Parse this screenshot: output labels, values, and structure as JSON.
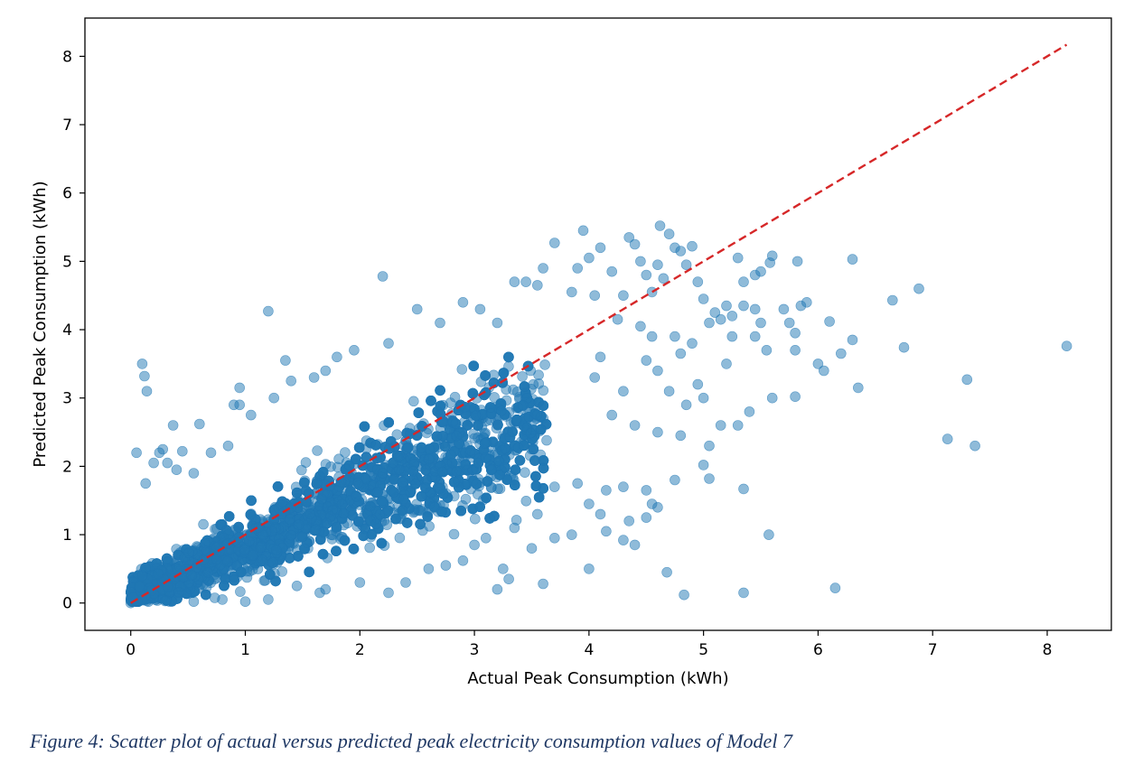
{
  "chart_data": {
    "type": "scatter",
    "title": "",
    "xlabel": "Actual Peak Consumption (kWh)",
    "ylabel": "Predicted Peak Consumption (kWh)",
    "xlim": [
      -0.4,
      8.56
    ],
    "ylim": [
      -0.4,
      8.56
    ],
    "xticks": [
      0,
      1,
      2,
      3,
      4,
      5,
      6,
      7,
      8
    ],
    "yticks": [
      0,
      1,
      2,
      3,
      4,
      5,
      6,
      7,
      8
    ],
    "grid": false,
    "point_color": "#1f77b4",
    "point_alpha": 0.5,
    "reference_line": {
      "x": [
        0,
        8.17
      ],
      "y": [
        0,
        8.17
      ],
      "color": "#d62728",
      "style": "dashed"
    },
    "cluster_note": "dense cloud of several thousand points concentrated along 0-3.5 kWh",
    "points": [
      [
        0.0,
        0.0
      ],
      [
        0.05,
        0.02
      ],
      [
        0.1,
        0.05
      ],
      [
        0.02,
        0.08
      ],
      [
        0.1,
        3.5
      ],
      [
        0.12,
        3.32
      ],
      [
        0.14,
        3.1
      ],
      [
        0.05,
        2.2
      ],
      [
        0.28,
        2.25
      ],
      [
        0.32,
        2.05
      ],
      [
        0.37,
        2.6
      ],
      [
        0.6,
        2.62
      ],
      [
        0.25,
        2.2
      ],
      [
        0.45,
        2.22
      ],
      [
        0.2,
        2.05
      ],
      [
        0.13,
        1.75
      ],
      [
        0.4,
        1.95
      ],
      [
        0.55,
        1.9
      ],
      [
        0.7,
        2.2
      ],
      [
        0.85,
        2.3
      ],
      [
        0.9,
        2.9
      ],
      [
        0.95,
        3.15
      ],
      [
        1.2,
        4.27
      ],
      [
        1.25,
        3.0
      ],
      [
        1.4,
        3.25
      ],
      [
        1.35,
        3.55
      ],
      [
        1.6,
        3.3
      ],
      [
        1.7,
        3.4
      ],
      [
        1.8,
        3.6
      ],
      [
        1.95,
        3.7
      ],
      [
        2.2,
        4.78
      ],
      [
        2.25,
        3.8
      ],
      [
        2.5,
        4.3
      ],
      [
        2.7,
        4.1
      ],
      [
        2.9,
        4.4
      ],
      [
        3.05,
        4.3
      ],
      [
        3.2,
        4.1
      ],
      [
        3.35,
        4.7
      ],
      [
        3.45,
        4.7
      ],
      [
        3.55,
        4.65
      ],
      [
        3.7,
        5.27
      ],
      [
        3.6,
        4.9
      ],
      [
        3.9,
        4.9
      ],
      [
        3.85,
        4.55
      ],
      [
        3.95,
        5.45
      ],
      [
        4.0,
        5.05
      ],
      [
        4.05,
        4.5
      ],
      [
        4.1,
        5.2
      ],
      [
        4.2,
        4.85
      ],
      [
        4.3,
        4.5
      ],
      [
        4.35,
        5.35
      ],
      [
        4.4,
        5.25
      ],
      [
        4.45,
        5.0
      ],
      [
        4.5,
        4.8
      ],
      [
        4.55,
        4.55
      ],
      [
        4.6,
        4.95
      ],
      [
        4.65,
        4.75
      ],
      [
        4.62,
        5.52
      ],
      [
        4.7,
        5.4
      ],
      [
        4.75,
        5.2
      ],
      [
        4.8,
        5.15
      ],
      [
        4.85,
        4.95
      ],
      [
        4.9,
        5.22
      ],
      [
        4.95,
        4.7
      ],
      [
        5.0,
        4.45
      ],
      [
        5.1,
        4.25
      ],
      [
        5.15,
        4.15
      ],
      [
        5.2,
        4.35
      ],
      [
        5.25,
        4.2
      ],
      [
        5.3,
        5.05
      ],
      [
        5.35,
        4.7
      ],
      [
        5.45,
        4.8
      ],
      [
        5.5,
        4.85
      ],
      [
        5.58,
        4.98
      ],
      [
        5.6,
        5.08
      ],
      [
        5.7,
        4.3
      ],
      [
        5.75,
        4.1
      ],
      [
        5.8,
        3.95
      ],
      [
        5.85,
        4.35
      ],
      [
        5.9,
        4.4
      ],
      [
        5.82,
        5.0
      ],
      [
        5.8,
        3.7
      ],
      [
        6.1,
        4.12
      ],
      [
        6.2,
        3.65
      ],
      [
        6.3,
        3.85
      ],
      [
        6.35,
        3.15
      ],
      [
        6.0,
        3.5
      ],
      [
        6.05,
        3.4
      ],
      [
        6.3,
        5.03
      ],
      [
        6.65,
        4.43
      ],
      [
        6.75,
        3.74
      ],
      [
        6.88,
        4.6
      ],
      [
        7.13,
        2.4
      ],
      [
        7.3,
        3.27
      ],
      [
        7.37,
        2.3
      ],
      [
        8.17,
        3.76
      ],
      [
        5.8,
        3.02
      ],
      [
        5.6,
        3.0
      ],
      [
        5.4,
        2.8
      ],
      [
        5.3,
        2.6
      ],
      [
        5.15,
        2.6
      ],
      [
        5.05,
        2.3
      ],
      [
        5.0,
        2.02
      ],
      [
        5.05,
        1.82
      ],
      [
        5.35,
        1.67
      ],
      [
        5.57,
        1.0
      ],
      [
        5.35,
        0.15
      ],
      [
        4.83,
        0.12
      ],
      [
        4.68,
        0.45
      ],
      [
        4.3,
        0.92
      ],
      [
        4.4,
        0.85
      ],
      [
        4.15,
        1.05
      ],
      [
        4.0,
        0.5
      ],
      [
        6.15,
        0.22
      ],
      [
        3.3,
        0.35
      ],
      [
        3.2,
        0.2
      ],
      [
        3.6,
        0.28
      ],
      [
        3.25,
        0.5
      ],
      [
        3.0,
        0.85
      ],
      [
        3.1,
        0.95
      ],
      [
        3.5,
        0.8
      ],
      [
        3.7,
        0.95
      ],
      [
        3.85,
        1.0
      ],
      [
        4.55,
        1.45
      ],
      [
        4.6,
        1.4
      ],
      [
        4.5,
        1.25
      ],
      [
        4.35,
        1.2
      ],
      [
        4.1,
        1.3
      ],
      [
        4.75,
        1.8
      ],
      [
        4.5,
        1.65
      ],
      [
        4.3,
        1.7
      ],
      [
        4.15,
        1.65
      ],
      [
        4.0,
        1.45
      ],
      [
        3.9,
        1.75
      ],
      [
        3.7,
        1.7
      ],
      [
        3.55,
        1.3
      ],
      [
        3.35,
        1.1
      ],
      [
        2.25,
        0.15
      ],
      [
        2.6,
        0.5
      ],
      [
        2.75,
        0.55
      ],
      [
        2.9,
        0.62
      ],
      [
        2.4,
        0.3
      ],
      [
        2.0,
        0.3
      ],
      [
        1.7,
        0.2
      ],
      [
        1.65,
        0.15
      ],
      [
        1.45,
        0.25
      ],
      [
        1.0,
        0.02
      ],
      [
        1.2,
        0.05
      ],
      [
        0.8,
        0.05
      ],
      [
        0.55,
        0.02
      ],
      [
        0.3,
        0.03
      ],
      [
        0.95,
        2.9
      ],
      [
        1.05,
        2.75
      ],
      [
        4.95,
        3.2
      ],
      [
        4.85,
        2.9
      ],
      [
        4.7,
        3.1
      ],
      [
        4.6,
        3.4
      ],
      [
        4.5,
        3.55
      ],
      [
        4.8,
        3.65
      ],
      [
        4.75,
        3.9
      ],
      [
        4.55,
        3.9
      ],
      [
        4.45,
        4.05
      ],
      [
        4.25,
        4.15
      ],
      [
        4.1,
        3.6
      ],
      [
        4.05,
        3.3
      ],
      [
        4.3,
        3.1
      ],
      [
        4.2,
        2.75
      ],
      [
        4.4,
        2.6
      ],
      [
        4.6,
        2.5
      ],
      [
        4.8,
        2.45
      ],
      [
        5.0,
        3.0
      ],
      [
        5.2,
        3.5
      ],
      [
        5.25,
        3.9
      ],
      [
        5.45,
        3.9
      ],
      [
        5.55,
        3.7
      ],
      [
        5.5,
        4.1
      ],
      [
        5.45,
        4.3
      ],
      [
        5.35,
        4.35
      ],
      [
        5.05,
        4.1
      ],
      [
        4.9,
        3.8
      ]
    ]
  },
  "caption": "Figure 4: Scatter plot of actual versus predicted peak electricity consumption values of Model 7"
}
